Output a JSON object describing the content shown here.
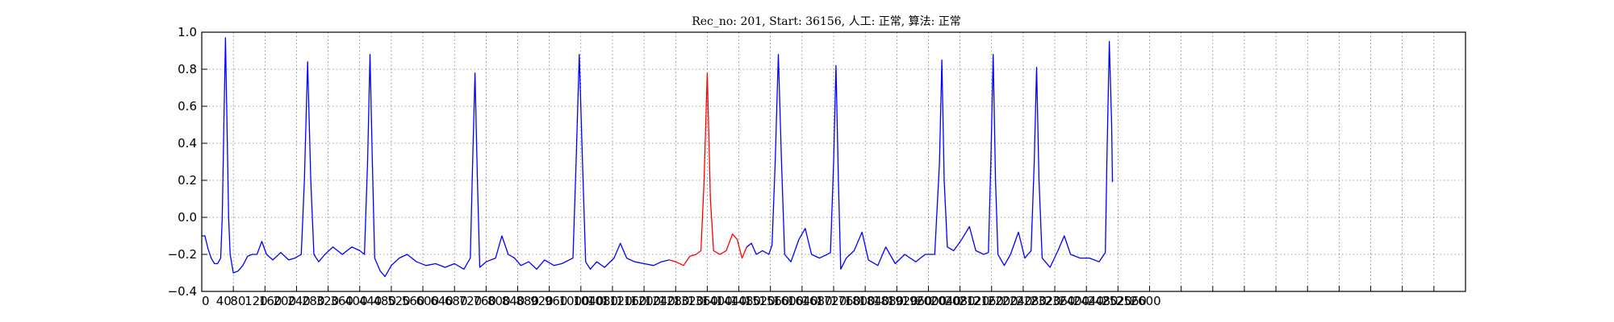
{
  "chart_data": {
    "type": "line",
    "title": "Rec_no: 201, Start: 36156, 人工: 正常, 算法: 正常",
    "xlabel": "",
    "ylabel": "",
    "xlim": [
      0,
      1600
    ],
    "ylim": [
      -0.4,
      1.0
    ],
    "grid": true,
    "y_ticks": [
      "1.0",
      "0.8",
      "0.6",
      "0.4",
      "0.2",
      "0.0",
      "−0.2",
      "−0.4"
    ],
    "x_ticks": [
      "0",
      "40",
      "80",
      "120",
      "160",
      "200",
      "240",
      "280",
      "320",
      "360",
      "400",
      "440",
      "480",
      "520",
      "560",
      "600",
      "640",
      "680",
      "720",
      "760",
      "800",
      "840",
      "880",
      "920",
      "960",
      "1000",
      "1040",
      "1080",
      "1120",
      "1160",
      "1200",
      "1240",
      "1280",
      "1320",
      "1360",
      "1400",
      "1440",
      "1480",
      "1520",
      "1560",
      "1600",
      "1640",
      "1680",
      "1720",
      "1760",
      "1800",
      "1840",
      "1880",
      "1920",
      "1960",
      "2000",
      "2040",
      "2080",
      "2120",
      "2160",
      "2200",
      "2240",
      "2280",
      "2320",
      "2360",
      "2400",
      "2440",
      "2480",
      "2520",
      "2560",
      "2600"
    ],
    "x_tick_values": [
      0,
      40,
      80,
      120,
      160,
      200,
      240,
      280,
      320,
      360,
      400,
      440,
      480,
      520,
      560,
      600,
      640,
      680,
      720,
      760,
      800,
      840,
      880,
      920,
      960,
      1000,
      1040,
      1080,
      1120,
      1160,
      1200,
      1240,
      1280,
      1320,
      1360,
      1400,
      1440,
      1480,
      1520,
      1560,
      1600,
      1640,
      1680,
      1720,
      1760,
      1800,
      1840,
      1880,
      1920,
      1960,
      2000,
      2040,
      2080,
      2120,
      2160,
      2200,
      2240,
      2280,
      2320,
      2360,
      2400,
      2440,
      2480,
      2520,
      2560,
      2600
    ],
    "baseline_points": [
      [
        0,
        -0.1
      ],
      [
        4,
        -0.1
      ],
      [
        8,
        -0.17
      ],
      [
        12,
        -0.22
      ],
      [
        16,
        -0.25
      ],
      [
        20,
        -0.25
      ],
      [
        24,
        -0.22
      ],
      [
        26,
        0.0
      ],
      [
        28,
        0.5
      ],
      [
        30,
        0.97
      ],
      [
        32,
        0.5
      ],
      [
        34,
        0.0
      ],
      [
        36,
        -0.2
      ],
      [
        40,
        -0.3
      ],
      [
        46,
        -0.29
      ],
      [
        52,
        -0.26
      ],
      [
        58,
        -0.21
      ],
      [
        64,
        -0.2
      ],
      [
        70,
        -0.2
      ],
      [
        76,
        -0.13
      ],
      [
        82,
        -0.2
      ],
      [
        90,
        -0.23
      ],
      [
        100,
        -0.19
      ],
      [
        110,
        -0.23
      ],
      [
        118,
        -0.22
      ],
      [
        126,
        -0.2
      ],
      [
        130,
        0.2
      ],
      [
        134,
        0.84
      ],
      [
        138,
        0.2
      ],
      [
        142,
        -0.2
      ],
      [
        148,
        -0.24
      ],
      [
        156,
        -0.2
      ],
      [
        166,
        -0.16
      ],
      [
        178,
        -0.2
      ],
      [
        190,
        -0.16
      ],
      [
        200,
        -0.18
      ],
      [
        206,
        -0.2
      ],
      [
        210,
        0.3
      ],
      [
        213,
        0.88
      ],
      [
        216,
        0.3
      ],
      [
        219,
        -0.22
      ],
      [
        226,
        -0.29
      ],
      [
        232,
        -0.32
      ],
      [
        240,
        -0.26
      ],
      [
        250,
        -0.22
      ],
      [
        260,
        -0.2
      ],
      [
        272,
        -0.24
      ],
      [
        284,
        -0.26
      ],
      [
        296,
        -0.25
      ],
      [
        308,
        -0.27
      ],
      [
        320,
        -0.25
      ],
      [
        332,
        -0.28
      ],
      [
        340,
        -0.22
      ],
      [
        343,
        0.3
      ],
      [
        346,
        0.78
      ],
      [
        349,
        0.2
      ],
      [
        352,
        -0.27
      ],
      [
        360,
        -0.24
      ],
      [
        372,
        -0.22
      ],
      [
        380,
        -0.1
      ],
      [
        388,
        -0.2
      ],
      [
        396,
        -0.22
      ],
      [
        404,
        -0.26
      ],
      [
        414,
        -0.24
      ],
      [
        424,
        -0.28
      ],
      [
        434,
        -0.23
      ],
      [
        446,
        -0.26
      ],
      [
        456,
        -0.25
      ],
      [
        470,
        -0.22
      ],
      [
        474,
        0.3
      ],
      [
        478,
        0.88
      ],
      [
        482,
        0.3
      ],
      [
        486,
        -0.24
      ],
      [
        492,
        -0.28
      ],
      [
        500,
        -0.24
      ],
      [
        510,
        -0.27
      ],
      [
        522,
        -0.22
      ],
      [
        530,
        -0.14
      ],
      [
        538,
        -0.22
      ],
      [
        548,
        -0.24
      ],
      [
        560,
        -0.25
      ],
      [
        572,
        -0.26
      ],
      [
        582,
        -0.24
      ],
      [
        592,
        -0.23
      ]
    ],
    "highlight_points": [
      [
        592,
        -0.23
      ],
      [
        600,
        -0.24
      ],
      [
        610,
        -0.26
      ],
      [
        618,
        -0.21
      ],
      [
        626,
        -0.2
      ],
      [
        632,
        -0.18
      ],
      [
        636,
        0.2
      ],
      [
        640,
        0.78
      ],
      [
        644,
        0.1
      ],
      [
        648,
        -0.18
      ],
      [
        656,
        -0.2
      ],
      [
        664,
        -0.18
      ],
      [
        672,
        -0.09
      ],
      [
        678,
        -0.12
      ],
      [
        684,
        -0.22
      ],
      [
        690,
        -0.16
      ]
    ],
    "tail_points": [
      [
        690,
        -0.16
      ],
      [
        696,
        -0.14
      ],
      [
        702,
        -0.2
      ],
      [
        710,
        -0.18
      ],
      [
        718,
        -0.2
      ],
      [
        722,
        -0.15
      ],
      [
        726,
        0.3
      ],
      [
        730,
        0.88
      ],
      [
        734,
        0.3
      ],
      [
        738,
        -0.2
      ],
      [
        746,
        -0.24
      ],
      [
        756,
        -0.12
      ],
      [
        764,
        -0.06
      ],
      [
        772,
        -0.2
      ],
      [
        782,
        -0.22
      ],
      [
        792,
        -0.2
      ],
      [
        796,
        -0.19
      ],
      [
        800,
        0.3
      ],
      [
        803,
        0.82
      ],
      [
        806,
        0.2
      ],
      [
        809,
        -0.28
      ],
      [
        816,
        -0.22
      ],
      [
        826,
        -0.18
      ],
      [
        836,
        -0.08
      ],
      [
        844,
        -0.23
      ],
      [
        856,
        -0.26
      ],
      [
        866,
        -0.16
      ],
      [
        878,
        -0.25
      ],
      [
        890,
        -0.2
      ],
      [
        904,
        -0.24
      ],
      [
        916,
        -0.2
      ],
      [
        928,
        -0.2
      ],
      [
        934,
        0.3
      ],
      [
        937,
        0.85
      ],
      [
        940,
        0.2
      ],
      [
        944,
        -0.16
      ],
      [
        952,
        -0.18
      ],
      [
        962,
        -0.12
      ],
      [
        972,
        -0.05
      ],
      [
        980,
        -0.18
      ],
      [
        990,
        -0.2
      ],
      [
        996,
        -0.19
      ],
      [
        999,
        0.3
      ],
      [
        1002,
        0.88
      ],
      [
        1005,
        0.2
      ],
      [
        1008,
        -0.2
      ],
      [
        1016,
        -0.26
      ],
      [
        1024,
        -0.2
      ],
      [
        1034,
        -0.08
      ],
      [
        1042,
        -0.22
      ],
      [
        1050,
        -0.18
      ],
      [
        1054,
        0.3
      ],
      [
        1057,
        0.81
      ],
      [
        1060,
        0.2
      ],
      [
        1064,
        -0.22
      ],
      [
        1074,
        -0.27
      ],
      [
        1084,
        -0.18
      ],
      [
        1092,
        -0.1
      ],
      [
        1100,
        -0.2
      ],
      [
        1112,
        -0.22
      ],
      [
        1124,
        -0.22
      ],
      [
        1136,
        -0.24
      ],
      [
        1144,
        -0.19
      ],
      [
        1146,
        0.3
      ],
      [
        1149,
        0.95
      ],
      [
        1152,
        0.5
      ],
      [
        1153,
        0.19
      ]
    ],
    "series_colors": [
      "#0000ff",
      "#ff0000",
      "#0000ff"
    ]
  }
}
